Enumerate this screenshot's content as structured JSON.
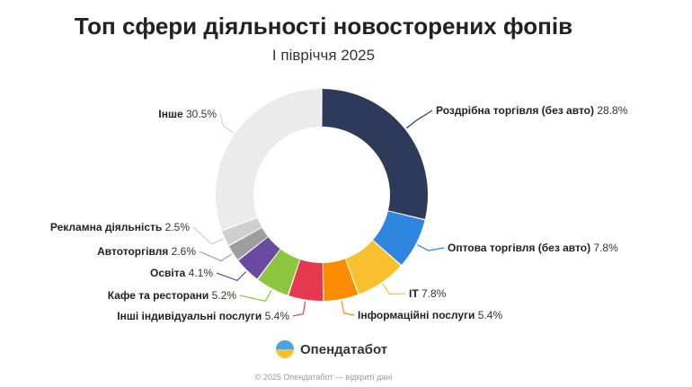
{
  "header": {
    "title": "Топ сфери діяльності новосторених фопів",
    "subtitle": "І півріччя 2025"
  },
  "brand": {
    "name": "Опендатабот",
    "icon": "opendatabot-logo-icon"
  },
  "footer": {
    "text": "© 2025 Опендатабот — відкриті дані"
  },
  "chart_data": {
    "type": "pie",
    "title": "Топ сфери діяльності новосторених фопів",
    "subtitle": "І півріччя 2025",
    "slices": [
      {
        "label": "Роздрібна торгівля (без авто)",
        "value": 28.8,
        "display": "28.8%",
        "color": "#2e3a59"
      },
      {
        "label": "Оптова торгівля (без авто)",
        "value": 7.8,
        "display": "7.8%",
        "color": "#2e86de"
      },
      {
        "label": "IT",
        "value": 7.8,
        "display": "7.8%",
        "color": "#fbc02d"
      },
      {
        "label": "Інформаційні послуги",
        "value": 5.4,
        "display": "5.4%",
        "color": "#fb8c00"
      },
      {
        "label": "Інші індивідуальні послуги",
        "value": 5.4,
        "display": "5.4%",
        "color": "#e53950"
      },
      {
        "label": "Кафе та ресторани",
        "value": 5.2,
        "display": "5.2%",
        "color": "#8cc63f"
      },
      {
        "label": "Освіта",
        "value": 4.1,
        "display": "4.1%",
        "color": "#6a4aa0"
      },
      {
        "label": "Автоторгівля",
        "value": 2.6,
        "display": "2.6%",
        "color": "#9e9e9e"
      },
      {
        "label": "Рекламна діяльність",
        "value": 2.5,
        "display": "2.5%",
        "color": "#cfcfcf"
      },
      {
        "label": "Інше",
        "value": 30.5,
        "display": "30.5%",
        "color": "#ebebeb"
      }
    ]
  }
}
